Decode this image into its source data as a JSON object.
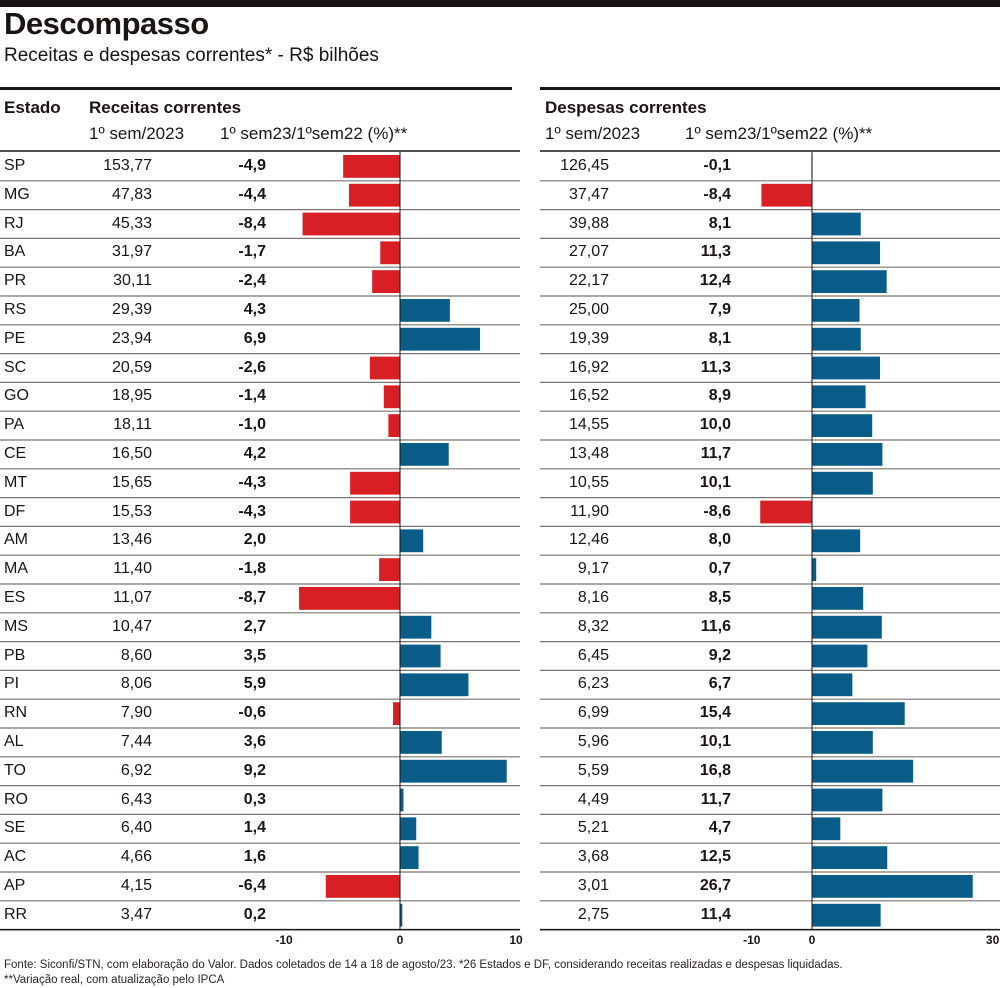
{
  "header": {
    "title": "Descompasso",
    "subtitle": "Receitas e despesas correntes* - R$ bilhões"
  },
  "columns": {
    "estado": "Estado",
    "receitas_group": "Receitas correntes",
    "despesas_group": "Despesas correntes",
    "value_col": "1º sem/2023",
    "pct_col": "1º sem23/1ºsem22 (%)**"
  },
  "footer": "Fonte: Siconfi/STN, com elaboração do Valor. Dados coletados de 14 a 18 de agosto/23. *26 Estados e DF, considerando receitas realizadas e despesas liquidadas. **Variação real, com atualização pelo IPCA",
  "colors": {
    "positive": "#0a5d88",
    "negative": "#d81f26",
    "text": "#1a1512",
    "gridline": "#7a7572"
  },
  "chart_data": {
    "type": "bar",
    "orientation": "horizontal",
    "title": "Descompasso",
    "subtitle": "Receitas e despesas correntes* - R$ bilhões",
    "categories": [
      "SP",
      "MG",
      "RJ",
      "BA",
      "PR",
      "RS",
      "PE",
      "SC",
      "GO",
      "PA",
      "CE",
      "MT",
      "DF",
      "AM",
      "MA",
      "ES",
      "MS",
      "PB",
      "PI",
      "RN",
      "AL",
      "TO",
      "RO",
      "SE",
      "AC",
      "AP",
      "RR"
    ],
    "panels": [
      {
        "name": "Receitas correntes",
        "values_label": "1º sem/2023",
        "values": [
          "153,77",
          "47,83",
          "45,33",
          "31,97",
          "30,11",
          "29,39",
          "23,94",
          "20,59",
          "18,95",
          "18,11",
          "16,50",
          "15,65",
          "15,53",
          "13,46",
          "11,40",
          "11,07",
          "10,47",
          "8,60",
          "8,06",
          "7,90",
          "7,44",
          "6,92",
          "6,43",
          "6,40",
          "4,66",
          "4,15",
          "3,47"
        ],
        "pct_label": "1º sem23/1ºsem22 (%)**",
        "pct": [
          -4.9,
          -4.4,
          -8.4,
          -1.7,
          -2.4,
          4.3,
          6.9,
          -2.6,
          -1.4,
          -1.0,
          4.2,
          -4.3,
          -4.3,
          2.0,
          -1.8,
          -8.7,
          2.7,
          3.5,
          5.9,
          -0.6,
          3.6,
          9.2,
          0.3,
          1.4,
          1.6,
          -6.4,
          0.2
        ],
        "xlim": [
          -10,
          10
        ],
        "xticks": [
          "-10",
          "0",
          "10"
        ]
      },
      {
        "name": "Despesas correntes",
        "values_label": "1º sem/2023",
        "values": [
          "126,45",
          "37,47",
          "39,88",
          "27,07",
          "22,17",
          "25,00",
          "19,39",
          "16,92",
          "16,52",
          "14,55",
          "13,48",
          "10,55",
          "11,90",
          "12,46",
          "9,17",
          "8,16",
          "8,32",
          "6,45",
          "6,23",
          "6,99",
          "5,96",
          "5,59",
          "4,49",
          "5,21",
          "3,68",
          "3,01",
          "2,75"
        ],
        "pct_label": "1º sem23/1ºsem22 (%)**",
        "pct": [
          -0.1,
          -8.4,
          8.1,
          11.3,
          12.4,
          7.9,
          8.1,
          11.3,
          8.9,
          10.0,
          11.7,
          10.1,
          -8.6,
          8.0,
          0.7,
          8.5,
          11.6,
          9.2,
          6.7,
          15.4,
          10.1,
          16.8,
          11.7,
          4.7,
          12.5,
          26.7,
          11.4
        ],
        "xlim": [
          -10,
          30
        ],
        "xticks": [
          "-10",
          "0",
          "30"
        ]
      }
    ]
  }
}
